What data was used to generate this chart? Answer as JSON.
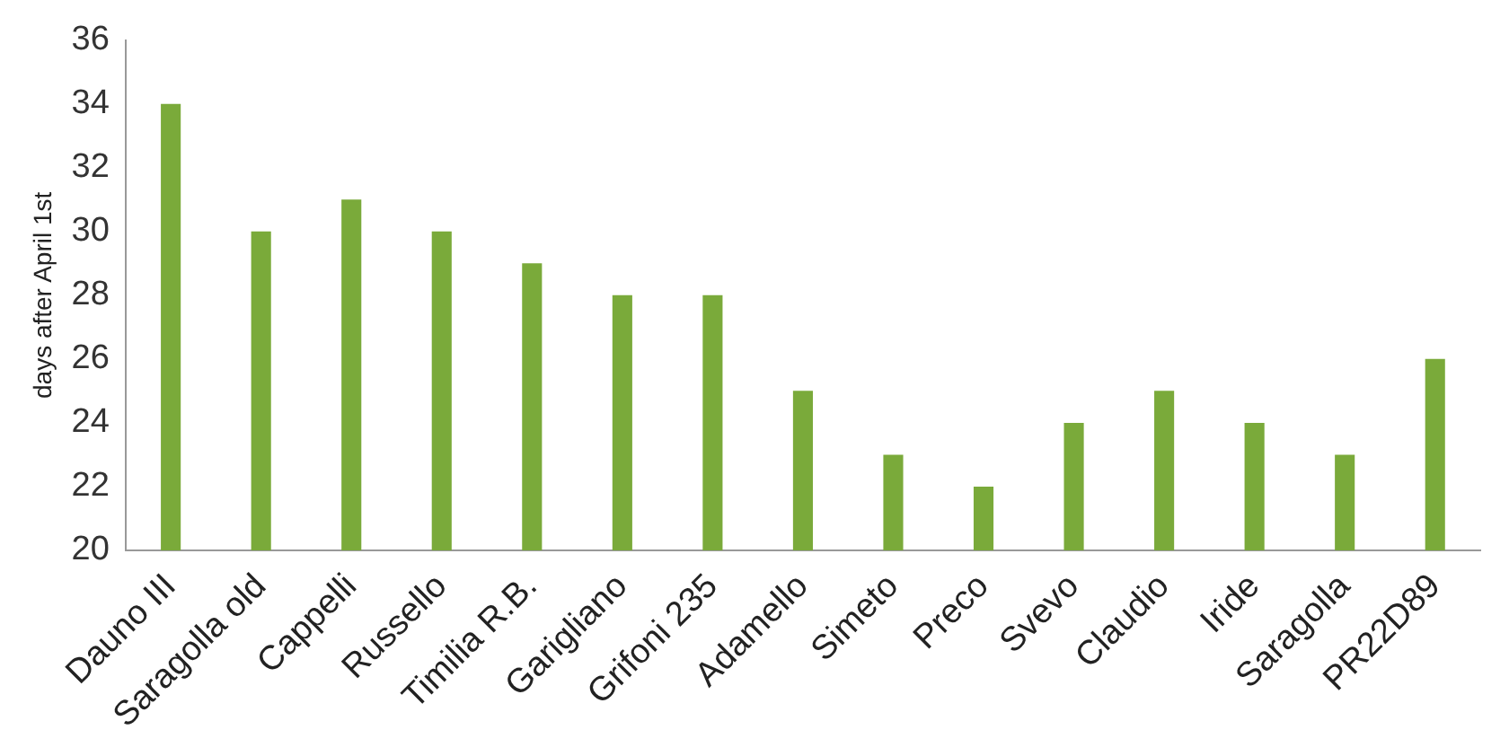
{
  "chart_data": {
    "type": "bar",
    "ylabel": "days after April 1st",
    "categories": [
      "Dauno III",
      "Saragolla old",
      "Cappelli",
      "Russello",
      "Timilia R.B.",
      "Garigliano",
      "Grifoni 235",
      "Adamello",
      "Simeto",
      "Preco",
      "Svevo",
      "Claudio",
      "Iride",
      "Saragolla",
      "PR22D89"
    ],
    "values": [
      34,
      30,
      31,
      30,
      29,
      28,
      28,
      25,
      23,
      22,
      24,
      25,
      24,
      23,
      26
    ],
    "color": "#7aaa3a",
    "ylim": [
      20,
      36
    ],
    "yticks": [
      20,
      22,
      24,
      26,
      28,
      30,
      32,
      34,
      36
    ],
    "grid": false,
    "legend": false
  }
}
